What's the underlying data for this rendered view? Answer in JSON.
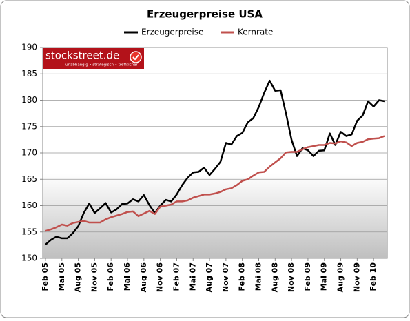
{
  "chart_data": {
    "type": "line",
    "title": "Erzeugerpreise USA",
    "logo": {
      "name": "stockstreet.de",
      "tagline": "unabhängig • strategisch • treffsicher"
    },
    "categories": [
      "Feb 05",
      null,
      null,
      "Mai 05",
      null,
      null,
      "Aug 05",
      null,
      null,
      "Nov 05",
      null,
      null,
      "Feb 06",
      null,
      null,
      "Mai 06",
      null,
      null,
      "Aug 06",
      null,
      null,
      "Nov 06",
      null,
      null,
      "Feb 07",
      null,
      null,
      "Mai 07",
      null,
      null,
      "Aug 07",
      null,
      null,
      "Nov 07",
      null,
      null,
      "Feb 08",
      null,
      null,
      "Mai 08",
      null,
      null,
      "Aug 08",
      null,
      null,
      "Nov 08",
      null,
      null,
      "Feb 09",
      null,
      null,
      "Mai 09",
      null,
      null,
      "Aug 09",
      null,
      null,
      "Nov 09",
      null,
      null,
      "Feb 10",
      null,
      null
    ],
    "series": [
      {
        "name": "Erzeugerpreise",
        "color": "#000000",
        "values": [
          152.6,
          153.5,
          154.1,
          153.8,
          153.8,
          154.8,
          156.1,
          158.6,
          160.4,
          158.6,
          159.5,
          160.5,
          158.7,
          159.3,
          160.3,
          160.4,
          161.2,
          160.8,
          162.0,
          160.1,
          158.6,
          160.0,
          161.1,
          160.8,
          162.1,
          163.9,
          165.3,
          166.3,
          166.4,
          167.2,
          165.8,
          167.0,
          168.3,
          171.9,
          171.6,
          173.2,
          173.8,
          175.8,
          176.6,
          178.7,
          181.4,
          183.7,
          181.8,
          181.9,
          177.4,
          172.5,
          169.4,
          170.9,
          170.5,
          169.4,
          170.4,
          170.5,
          173.7,
          171.5,
          174.0,
          173.2,
          173.5,
          176.1,
          177.1,
          179.8,
          178.8,
          180.0,
          179.8
        ]
      },
      {
        "name": "Kernrate",
        "color": "#c0504d",
        "values": [
          155.2,
          155.5,
          155.9,
          156.4,
          156.2,
          156.7,
          156.9,
          157.1,
          156.8,
          156.8,
          156.8,
          157.4,
          157.8,
          158.1,
          158.4,
          158.8,
          158.9,
          158.0,
          158.5,
          159.0,
          158.4,
          159.8,
          160.0,
          160.2,
          160.8,
          160.8,
          161.0,
          161.5,
          161.8,
          162.1,
          162.1,
          162.3,
          162.6,
          163.1,
          163.3,
          163.9,
          164.7,
          165.0,
          165.7,
          166.3,
          166.4,
          167.4,
          168.2,
          169.0,
          170.1,
          170.2,
          170.2,
          170.7,
          171.1,
          171.3,
          171.5,
          171.5,
          171.9,
          171.8,
          172.2,
          172.0,
          171.3,
          171.9,
          172.1,
          172.6,
          172.7,
          172.8,
          173.2
        ]
      }
    ],
    "ylim": [
      150,
      190
    ],
    "yticks": [
      150,
      155,
      160,
      165,
      170,
      175,
      180,
      185,
      190
    ],
    "grid": true,
    "legend": "top"
  }
}
